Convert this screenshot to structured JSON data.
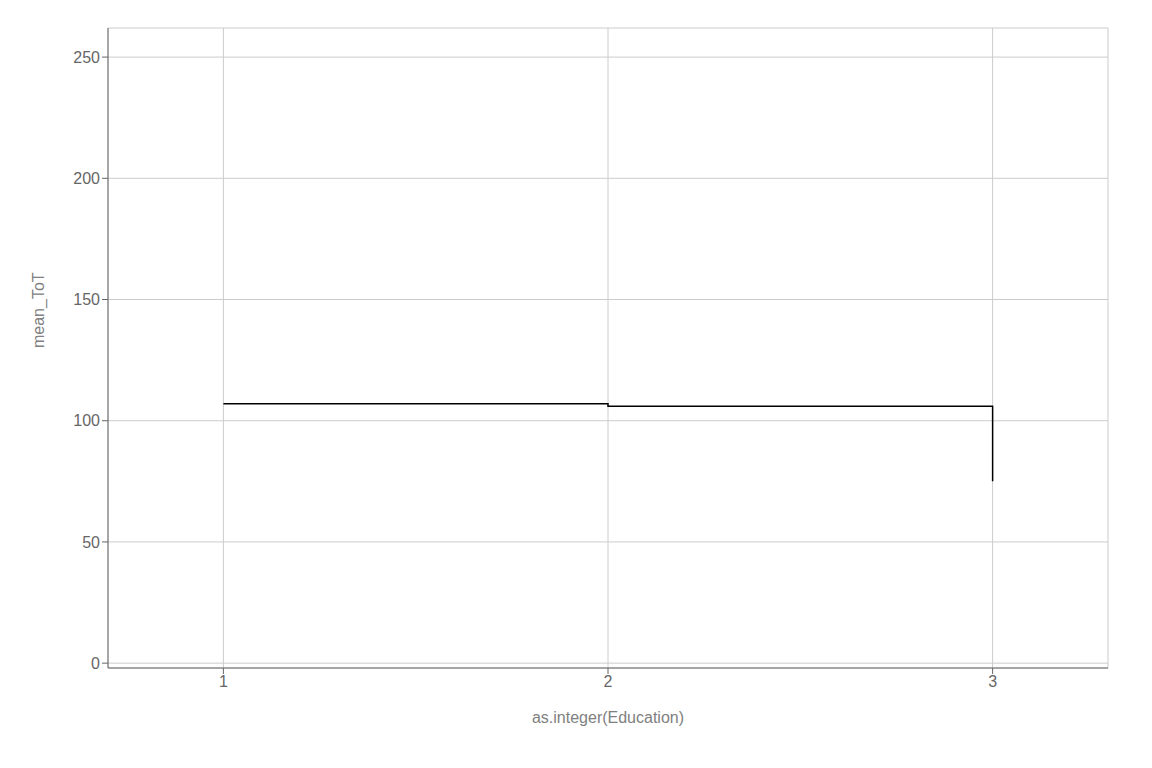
{
  "chart_data": {
    "type": "step",
    "x": [
      1,
      2,
      3
    ],
    "values": [
      107,
      106,
      75
    ],
    "xlabel": "as.integer(Education)",
    "ylabel": "mean_ToT",
    "xlim": [
      0.7,
      3.3
    ],
    "ylim": [
      -2,
      262
    ],
    "xticks": [
      1,
      2,
      3
    ],
    "yticks": [
      0,
      50,
      100,
      150,
      200,
      250
    ],
    "color": "#000000",
    "grid": true
  }
}
